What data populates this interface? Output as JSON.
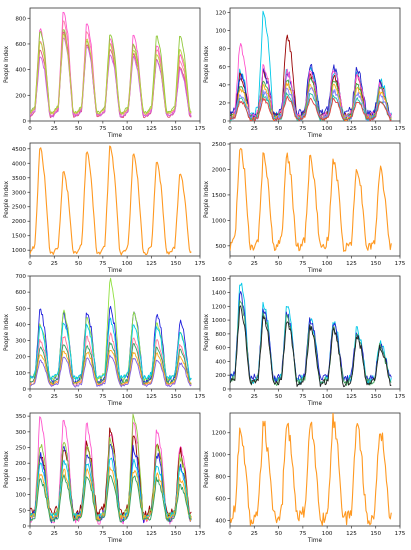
{
  "chart_data": [
    {
      "type": "line",
      "ylabel": "People Index",
      "xlabel": "Time",
      "xlim": [
        0,
        175
      ],
      "ylim": [
        0,
        880
      ],
      "xticks": [
        0,
        25,
        50,
        75,
        100,
        125,
        150,
        175
      ],
      "yticks": [
        0,
        200,
        400,
        600,
        800
      ],
      "series": [
        {
          "color": "#ff55cc",
          "peaks": [
            720,
            860,
            760,
            650,
            670,
            600,
            520
          ],
          "base": 55,
          "noise": 12
        },
        {
          "color": "#ff7aa8",
          "peaks": [
            630,
            790,
            700,
            610,
            600,
            560,
            470
          ],
          "base": 45,
          "noise": 10
        },
        {
          "color": "#90c83a",
          "peaks": [
            700,
            720,
            620,
            680,
            600,
            660,
            660
          ],
          "base": 70,
          "noise": 10
        },
        {
          "color": "#e0507a",
          "peaks": [
            560,
            700,
            600,
            560,
            530,
            480,
            420
          ],
          "base": 35,
          "noise": 10
        },
        {
          "color": "#d060e0",
          "peaks": [
            500,
            650,
            590,
            520,
            500,
            470,
            400
          ],
          "base": 40,
          "noise": 10
        },
        {
          "color": "#c0d040",
          "peaks": [
            620,
            680,
            640,
            600,
            560,
            520,
            560
          ],
          "base": 60,
          "noise": 10
        }
      ]
    },
    {
      "type": "line",
      "ylabel": "People Index",
      "xlabel": "Time",
      "xlim": [
        0,
        175
      ],
      "ylim": [
        0,
        125
      ],
      "xticks": [
        0,
        25,
        50,
        75,
        100,
        125,
        150,
        175
      ],
      "yticks": [
        0,
        20,
        40,
        60,
        80,
        100,
        120
      ],
      "series": [
        {
          "color": "#00c8e8",
          "peaks": [
            55,
            120,
            55,
            60,
            55,
            52,
            45
          ],
          "base": 6,
          "noise": 4
        },
        {
          "color": "#990000",
          "peaks": [
            50,
            55,
            95,
            52,
            50,
            48,
            40
          ],
          "base": 5,
          "noise": 4
        },
        {
          "color": "#2020cc",
          "peaks": [
            50,
            55,
            55,
            62,
            60,
            58,
            42
          ],
          "base": 8,
          "noise": 5
        },
        {
          "color": "#ff55cc",
          "peaks": [
            85,
            60,
            55,
            55,
            58,
            50,
            40
          ],
          "base": 5,
          "noise": 4
        },
        {
          "color": "#40a840",
          "peaks": [
            40,
            42,
            45,
            48,
            45,
            42,
            36
          ],
          "base": 4,
          "noise": 3
        },
        {
          "color": "#ffaa20",
          "peaks": [
            35,
            38,
            42,
            40,
            40,
            36,
            32
          ],
          "base": 3,
          "noise": 3
        },
        {
          "color": "#8080ff",
          "peaks": [
            30,
            32,
            35,
            36,
            34,
            30,
            28
          ],
          "base": 3,
          "noise": 3
        },
        {
          "color": "#20c0a0",
          "peaks": [
            25,
            28,
            30,
            30,
            28,
            25,
            22
          ],
          "base": 2,
          "noise": 2
        },
        {
          "color": "#e04040",
          "peaks": [
            22,
            24,
            26,
            25,
            24,
            22,
            20
          ],
          "base": 2,
          "noise": 2
        }
      ]
    },
    {
      "type": "line",
      "ylabel": "People Index",
      "xlabel": "Time",
      "xlim": [
        0,
        175
      ],
      "ylim": [
        800,
        4700
      ],
      "xticks": [
        0,
        25,
        50,
        75,
        100,
        125,
        150,
        175
      ],
      "yticks": [
        1000,
        1500,
        2000,
        2500,
        3000,
        3500,
        4000,
        4500
      ],
      "series": [
        {
          "color": "#ff9922",
          "peaks": [
            4550,
            3750,
            4450,
            4600,
            4350,
            4050,
            3700
          ],
          "base": 900,
          "noise": 60
        }
      ]
    },
    {
      "type": "line",
      "ylabel": "People Index",
      "xlabel": "Time",
      "xlim": [
        0,
        175
      ],
      "ylim": [
        300,
        2520
      ],
      "xticks": [
        0,
        25,
        50,
        75,
        100,
        125,
        150,
        175
      ],
      "yticks": [
        500,
        1000,
        1500,
        2000,
        2500
      ],
      "series": [
        {
          "color": "#ff9922",
          "peaks": [
            2480,
            2300,
            2300,
            2250,
            2200,
            2050,
            2000
          ],
          "base": 480,
          "noise": 90
        }
      ]
    },
    {
      "type": "line",
      "ylabel": "People Index",
      "xlabel": "Time",
      "xlim": [
        0,
        175
      ],
      "ylim": [
        0,
        700
      ],
      "xticks": [
        0,
        25,
        50,
        75,
        100,
        125,
        150,
        175
      ],
      "yticks": [
        0,
        100,
        200,
        300,
        400,
        500,
        600,
        700
      ],
      "series": [
        {
          "color": "#2020dd",
          "peaks": [
            490,
            470,
            480,
            500,
            480,
            470,
            420
          ],
          "base": 50,
          "noise": 20
        },
        {
          "color": "#90e040",
          "peaks": [
            400,
            480,
            440,
            680,
            470,
            400,
            360
          ],
          "base": 60,
          "noise": 15
        },
        {
          "color": "#00c8e8",
          "peaks": [
            380,
            420,
            400,
            430,
            410,
            380,
            340
          ],
          "base": 70,
          "noise": 15
        },
        {
          "color": "#ff7799",
          "peaks": [
            300,
            330,
            320,
            340,
            320,
            300,
            270
          ],
          "base": 30,
          "noise": 12
        },
        {
          "color": "#30a060",
          "peaks": [
            260,
            280,
            270,
            290,
            280,
            260,
            240
          ],
          "base": 40,
          "noise": 10
        },
        {
          "color": "#ffaa20",
          "peaks": [
            220,
            240,
            230,
            250,
            230,
            220,
            200
          ],
          "base": 30,
          "noise": 10
        },
        {
          "color": "#8060e0",
          "peaks": [
            180,
            200,
            190,
            210,
            190,
            180,
            160
          ],
          "base": 20,
          "noise": 8
        }
      ]
    },
    {
      "type": "line",
      "ylabel": "People Index",
      "xlabel": "Time",
      "xlim": [
        0,
        175
      ],
      "ylim": [
        0,
        1640
      ],
      "xticks": [
        0,
        25,
        50,
        75,
        100,
        125,
        150,
        175
      ],
      "yticks": [
        0,
        200,
        400,
        600,
        800,
        1000,
        1200,
        1400,
        1600
      ],
      "series": [
        {
          "color": "#00c8e8",
          "peaks": [
            1550,
            1250,
            1200,
            1050,
            1000,
            880,
            700
          ],
          "base": 120,
          "noise": 60
        },
        {
          "color": "#2020cc",
          "peaks": [
            1400,
            1150,
            1100,
            1000,
            950,
            800,
            650
          ],
          "base": 150,
          "noise": 60
        },
        {
          "color": "#40a860",
          "peaks": [
            1300,
            1100,
            1050,
            950,
            900,
            780,
            620
          ],
          "base": 100,
          "noise": 50
        },
        {
          "color": "#222222",
          "peaks": [
            1200,
            1050,
            1000,
            900,
            850,
            760,
            600
          ],
          "base": 80,
          "noise": 50
        }
      ]
    },
    {
      "type": "line",
      "ylabel": "People Index",
      "xlabel": "Time",
      "xlim": [
        0,
        175
      ],
      "ylim": [
        0,
        360
      ],
      "xticks": [
        0,
        25,
        50,
        75,
        100,
        125,
        150,
        175
      ],
      "yticks": [
        0,
        50,
        100,
        150,
        200,
        250,
        300,
        350
      ],
      "series": [
        {
          "color": "#ff55cc",
          "peaks": [
            340,
            350,
            320,
            300,
            330,
            310,
            260
          ],
          "base": 20,
          "noise": 15
        },
        {
          "color": "#990000",
          "peaks": [
            230,
            250,
            260,
            310,
            280,
            260,
            240
          ],
          "base": 40,
          "noise": 15
        },
        {
          "color": "#2020dd",
          "peaks": [
            230,
            260,
            240,
            270,
            250,
            230,
            200
          ],
          "base": 25,
          "noise": 15
        },
        {
          "color": "#90c83a",
          "peaks": [
            260,
            270,
            250,
            280,
            350,
            260,
            220
          ],
          "base": 30,
          "noise": 12
        },
        {
          "color": "#00c8e8",
          "peaks": [
            200,
            210,
            200,
            220,
            210,
            200,
            180
          ],
          "base": 30,
          "noise": 10
        },
        {
          "color": "#ffaa20",
          "peaks": [
            170,
            180,
            175,
            185,
            180,
            170,
            150
          ],
          "base": 25,
          "noise": 10
        },
        {
          "color": "#30a060",
          "peaks": [
            150,
            160,
            155,
            165,
            160,
            150,
            130
          ],
          "base": 20,
          "noise": 8
        }
      ]
    },
    {
      "type": "line",
      "ylabel": "People Index",
      "xlabel": "Time",
      "xlim": [
        0,
        175
      ],
      "ylim": [
        350,
        1380
      ],
      "xticks": [
        0,
        25,
        50,
        75,
        100,
        125,
        150,
        175
      ],
      "yticks": [
        400,
        600,
        800,
        1000,
        1200
      ],
      "series": [
        {
          "color": "#ff9922",
          "peaks": [
            1250,
            1300,
            1320,
            1310,
            1330,
            1300,
            1250
          ],
          "base": 420,
          "noise": 70
        }
      ]
    }
  ]
}
